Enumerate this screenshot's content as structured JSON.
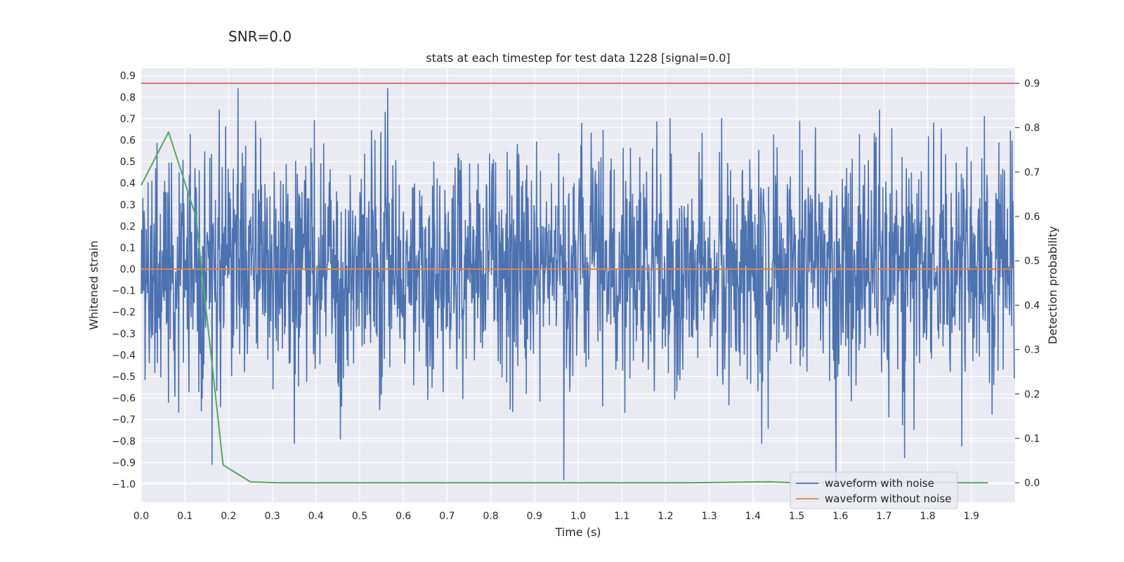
{
  "suptitle": "SNR=0.0",
  "chart_data": {
    "type": "line",
    "title": "stats at each timestep for test data 1228 [signal=0.0]",
    "xlabel": "Time (s)",
    "ylabel": "Whitened strain",
    "y2label": "Detection probability",
    "xlim": [
      0.0,
      2.0
    ],
    "ylim": [
      -1.085,
      0.935
    ],
    "y2lim": [
      -0.044,
      0.934
    ],
    "x_ticks": [
      0.0,
      0.1,
      0.2,
      0.3,
      0.4,
      0.5,
      0.6,
      0.7,
      0.8,
      0.9,
      1.0,
      1.1,
      1.2,
      1.3,
      1.4,
      1.5,
      1.6,
      1.7,
      1.8,
      1.9
    ],
    "x_tick_labels": [
      "0.0",
      "0.1",
      "0.2",
      "0.3",
      "0.4",
      "0.5",
      "0.6",
      "0.7",
      "0.8",
      "0.9",
      "1.0",
      "1.1",
      "1.2",
      "1.3",
      "1.4",
      "1.5",
      "1.6",
      "1.7",
      "1.8",
      "1.9"
    ],
    "y_ticks": [
      0.9,
      0.8,
      0.7,
      0.6,
      0.5,
      0.4,
      0.3,
      0.2,
      0.1,
      0.0,
      -0.1,
      -0.2,
      -0.3,
      -0.4,
      -0.5,
      -0.6,
      -0.7,
      -0.8,
      -0.9,
      -1.0
    ],
    "y_tick_labels": [
      "0.9",
      "0.8",
      "0.7",
      "0.6",
      "0.5",
      "0.4",
      "0.3",
      "0.2",
      "0.1",
      "0.0",
      "−0.1",
      "−0.2",
      "−0.3",
      "−0.4",
      "−0.5",
      "−0.6",
      "−0.7",
      "−0.8",
      "−0.9",
      "−1.0"
    ],
    "y2_ticks": [
      0.9,
      0.8,
      0.7,
      0.6,
      0.5,
      0.4,
      0.3,
      0.2,
      0.1,
      0.0
    ],
    "y2_tick_labels": [
      "0.9",
      "0.8",
      "0.7",
      "0.6",
      "0.5",
      "0.4",
      "0.3",
      "0.2",
      "0.1",
      "0.0"
    ],
    "legend_position": "bottom-right",
    "colors": {
      "background": "#eaeaf2",
      "grid": "#ffffff",
      "noise": "#4c72b0",
      "clean": "#dd8452",
      "prob": "#55a868",
      "threshold": "#c44e52"
    },
    "series": [
      {
        "name": "waveform with noise",
        "axis": "left",
        "generated": true,
        "x_start": 0.0,
        "x_end": 1.998,
        "n_points": 2048,
        "std": 0.27,
        "clip": [
          -0.98,
          0.84
        ],
        "peaks": [
          {
            "x": 0.222,
            "y": 0.84
          },
          {
            "x": 0.062,
            "y": -0.62
          },
          {
            "x": 0.35,
            "y": -0.81
          },
          {
            "x": 0.456,
            "y": -0.79
          },
          {
            "x": 0.558,
            "y": 0.73
          },
          {
            "x": 1.42,
            "y": -0.81
          },
          {
            "x": 1.59,
            "y": -0.98
          },
          {
            "x": 1.69,
            "y": 0.74
          },
          {
            "x": 1.93,
            "y": 0.71
          },
          {
            "x": 1.21,
            "y": 0.7
          }
        ]
      },
      {
        "name": "waveform without noise",
        "axis": "left",
        "x": [
          0.0,
          1.998
        ],
        "y": [
          0.0,
          0.0
        ]
      },
      {
        "name": "Detection probability",
        "axis": "right",
        "x": [
          0.0,
          0.0625,
          0.125,
          0.1875,
          0.25,
          0.3125,
          0.5,
          0.75,
          1.0,
          1.25,
          1.4375,
          1.5,
          1.75,
          1.9375
        ],
        "y": [
          0.67,
          0.79,
          0.6,
          0.04,
          0.002,
          0.0,
          0.0,
          0.0,
          0.0,
          0.0,
          0.002,
          0.0,
          0.0,
          0.0
        ]
      },
      {
        "name": "threshold",
        "axis": "right",
        "x": [
          0.0,
          2.0
        ],
        "y": [
          0.9,
          0.9
        ]
      }
    ]
  }
}
